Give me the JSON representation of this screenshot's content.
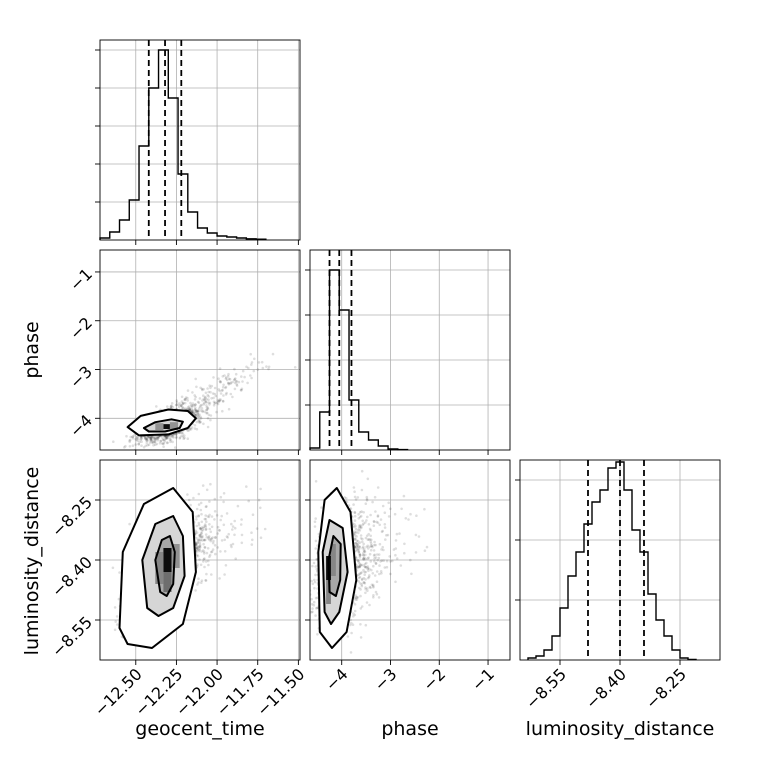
{
  "chart_data": {
    "type": "corner",
    "parameters": [
      {
        "label": "geocent_time",
        "range": [
          -12.72,
          -11.49
        ],
        "ticks": [
          -12.5,
          -12.25,
          -12.0,
          -11.75,
          -11.5
        ],
        "tick_labels": [
          "−12.50",
          "−12.25",
          "−12.00",
          "−11.75",
          "−11.50"
        ]
      },
      {
        "label": "phase",
        "range": [
          -4.65,
          -0.55
        ],
        "ticks": [
          -4,
          -3,
          -2,
          -1
        ],
        "tick_labels": [
          "−4",
          "−3",
          "−2",
          "−1"
        ]
      },
      {
        "label": "luminosity_distance",
        "range": [
          -8.65,
          -8.15
        ],
        "ticks": [
          -8.55,
          -8.4,
          -8.25
        ],
        "tick_labels": [
          "−8.55",
          "−8.40",
          "−8.25"
        ]
      }
    ],
    "histograms": [
      {
        "parameter": "geocent_time",
        "quantiles": [
          -12.42,
          -12.32,
          -12.22
        ],
        "bins": [
          {
            "x0": -12.72,
            "x1": -12.66,
            "v": 0.01
          },
          {
            "x0": -12.66,
            "x1": -12.6,
            "v": 0.04
          },
          {
            "x0": -12.6,
            "x1": -12.54,
            "v": 0.1
          },
          {
            "x0": -12.54,
            "x1": -12.48,
            "v": 0.2
          },
          {
            "x0": -12.48,
            "x1": -12.42,
            "v": 0.47
          },
          {
            "x0": -12.42,
            "x1": -12.36,
            "v": 0.76
          },
          {
            "x0": -12.36,
            "x1": -12.3,
            "v": 0.95
          },
          {
            "x0": -12.3,
            "x1": -12.24,
            "v": 0.71
          },
          {
            "x0": -12.24,
            "x1": -12.18,
            "v": 0.33
          },
          {
            "x0": -12.18,
            "x1": -12.12,
            "v": 0.14
          },
          {
            "x0": -12.12,
            "x1": -12.06,
            "v": 0.06
          },
          {
            "x0": -12.06,
            "x1": -12.0,
            "v": 0.035
          },
          {
            "x0": -12.0,
            "x1": -11.94,
            "v": 0.02
          },
          {
            "x0": -11.94,
            "x1": -11.88,
            "v": 0.015
          },
          {
            "x0": -11.88,
            "x1": -11.82,
            "v": 0.01
          },
          {
            "x0": -11.82,
            "x1": -11.76,
            "v": 0.006
          },
          {
            "x0": -11.76,
            "x1": -11.7,
            "v": 0.004
          }
        ]
      },
      {
        "parameter": "phase",
        "quantiles": [
          -4.25,
          -4.05,
          -3.8
        ],
        "bins": [
          {
            "x0": -4.65,
            "x1": -4.45,
            "v": 0.01
          },
          {
            "x0": -4.45,
            "x1": -4.25,
            "v": 0.19
          },
          {
            "x0": -4.25,
            "x1": -4.05,
            "v": 0.9
          },
          {
            "x0": -4.05,
            "x1": -3.85,
            "v": 0.7
          },
          {
            "x0": -3.85,
            "x1": -3.65,
            "v": 0.25
          },
          {
            "x0": -3.65,
            "x1": -3.45,
            "v": 0.09
          },
          {
            "x0": -3.45,
            "x1": -3.25,
            "v": 0.05
          },
          {
            "x0": -3.25,
            "x1": -3.05,
            "v": 0.02
          },
          {
            "x0": -3.05,
            "x1": -2.85,
            "v": 0.005
          },
          {
            "x0": -2.85,
            "x1": -2.65,
            "v": 0.002
          }
        ]
      },
      {
        "parameter": "luminosity_distance",
        "quantiles": [
          -8.48,
          -8.4,
          -8.34
        ],
        "bins": [
          {
            "x0": -8.63,
            "x1": -8.61,
            "v": 0.01
          },
          {
            "x0": -8.61,
            "x1": -8.59,
            "v": 0.02
          },
          {
            "x0": -8.59,
            "x1": -8.57,
            "v": 0.05
          },
          {
            "x0": -8.57,
            "x1": -8.55,
            "v": 0.12
          },
          {
            "x0": -8.55,
            "x1": -8.53,
            "v": 0.26
          },
          {
            "x0": -8.53,
            "x1": -8.51,
            "v": 0.42
          },
          {
            "x0": -8.51,
            "x1": -8.49,
            "v": 0.54
          },
          {
            "x0": -8.49,
            "x1": -8.47,
            "v": 0.68
          },
          {
            "x0": -8.47,
            "x1": -8.45,
            "v": 0.79
          },
          {
            "x0": -8.45,
            "x1": -8.43,
            "v": 0.85
          },
          {
            "x0": -8.43,
            "x1": -8.41,
            "v": 0.96
          },
          {
            "x0": -8.41,
            "x1": -8.39,
            "v": 0.99
          },
          {
            "x0": -8.39,
            "x1": -8.37,
            "v": 0.85
          },
          {
            "x0": -8.37,
            "x1": -8.35,
            "v": 0.65
          },
          {
            "x0": -8.35,
            "x1": -8.33,
            "v": 0.54
          },
          {
            "x0": -8.33,
            "x1": -8.31,
            "v": 0.33
          },
          {
            "x0": -8.31,
            "x1": -8.29,
            "v": 0.2
          },
          {
            "x0": -8.29,
            "x1": -8.27,
            "v": 0.12
          },
          {
            "x0": -8.27,
            "x1": -8.25,
            "v": 0.05
          },
          {
            "x0": -8.25,
            "x1": -8.23,
            "v": 0.01
          },
          {
            "x0": -8.23,
            "x1": -8.21,
            "v": 0.003
          }
        ]
      }
    ],
    "joint": [
      {
        "x_parameter": "geocent_time",
        "y_parameter": "phase",
        "center": [
          -12.3,
          -4.15
        ],
        "spread": [
          0.09,
          0.17
        ],
        "correlation": 0.55,
        "tail": [
          0.12,
          0.28
        ],
        "contours": [
          [
            [
              -12.45,
              -4.2
            ],
            [
              -12.38,
              -4.08
            ],
            [
              -12.28,
              -4.02
            ],
            [
              -12.21,
              -4.07
            ],
            [
              -12.23,
              -4.2
            ],
            [
              -12.32,
              -4.27
            ],
            [
              -12.42,
              -4.27
            ]
          ],
          [
            [
              -12.55,
              -4.18
            ],
            [
              -12.47,
              -3.95
            ],
            [
              -12.3,
              -3.82
            ],
            [
              -12.18,
              -3.85
            ],
            [
              -12.13,
              -4.0
            ],
            [
              -12.18,
              -4.2
            ],
            [
              -12.3,
              -4.33
            ],
            [
              -12.48,
              -4.35
            ]
          ]
        ],
        "peak_cells": [
          [
            -12.33,
            -4.22,
            -12.29,
            -4.12,
            1.0
          ],
          [
            -12.38,
            -4.24,
            -12.33,
            -4.1,
            0.45
          ],
          [
            -12.29,
            -4.24,
            -12.24,
            -4.08,
            0.45
          ]
        ]
      },
      {
        "x_parameter": "geocent_time",
        "y_parameter": "luminosity_distance",
        "center": [
          -12.32,
          -8.41
        ],
        "spread": [
          0.11,
          0.06
        ],
        "correlation": 0.6,
        "tail": [
          0.1,
          0.02
        ],
        "contours": [
          [
            [
              -12.35,
              -8.48
            ],
            [
              -12.38,
              -8.4
            ],
            [
              -12.34,
              -8.35
            ],
            [
              -12.29,
              -8.34
            ],
            [
              -12.26,
              -8.38
            ],
            [
              -12.27,
              -8.46
            ],
            [
              -12.31,
              -8.49
            ]
          ],
          [
            [
              -12.43,
              -8.52
            ],
            [
              -12.46,
              -8.4
            ],
            [
              -12.38,
              -8.31
            ],
            [
              -12.27,
              -8.29
            ],
            [
              -12.21,
              -8.34
            ],
            [
              -12.2,
              -8.44
            ],
            [
              -12.27,
              -8.52
            ],
            [
              -12.36,
              -8.54
            ]
          ],
          [
            [
              -12.6,
              -8.57
            ],
            [
              -12.58,
              -8.38
            ],
            [
              -12.45,
              -8.26
            ],
            [
              -12.27,
              -8.22
            ],
            [
              -12.15,
              -8.28
            ],
            [
              -12.13,
              -8.43
            ],
            [
              -12.21,
              -8.56
            ],
            [
              -12.4,
              -8.62
            ],
            [
              -12.55,
              -8.61
            ]
          ]
        ],
        "peak_cells": [
          [
            -12.33,
            -8.43,
            -12.28,
            -8.37,
            1.0
          ],
          [
            -12.33,
            -8.48,
            -12.28,
            -8.43,
            0.6
          ],
          [
            -12.38,
            -8.46,
            -12.33,
            -8.38,
            0.5
          ],
          [
            -12.28,
            -8.42,
            -12.23,
            -8.36,
            0.45
          ]
        ]
      },
      {
        "x_parameter": "phase",
        "y_parameter": "luminosity_distance",
        "center": [
          -4.05,
          -8.42
        ],
        "spread": [
          0.24,
          0.07
        ],
        "correlation": 0.2,
        "tail": [
          0.3,
          0.02
        ],
        "contours": [
          [
            [
              -4.25,
              -8.48
            ],
            [
              -4.27,
              -8.4
            ],
            [
              -4.17,
              -8.34
            ],
            [
              -4.02,
              -8.36
            ],
            [
              -4.03,
              -8.45
            ],
            [
              -4.12,
              -8.49
            ]
          ],
          [
            [
              -4.35,
              -8.53
            ],
            [
              -4.39,
              -8.38
            ],
            [
              -4.25,
              -8.3
            ],
            [
              -3.98,
              -8.32
            ],
            [
              -3.88,
              -8.43
            ],
            [
              -4.05,
              -8.53
            ],
            [
              -4.22,
              -8.56
            ]
          ],
          [
            [
              -4.45,
              -8.58
            ],
            [
              -4.48,
              -8.38
            ],
            [
              -4.35,
              -8.25
            ],
            [
              -4.1,
              -8.22
            ],
            [
              -3.82,
              -8.28
            ],
            [
              -3.7,
              -8.45
            ],
            [
              -3.9,
              -8.58
            ],
            [
              -4.2,
              -8.62
            ]
          ]
        ],
        "peak_cells": [
          [
            -4.32,
            -8.45,
            -4.22,
            -8.39,
            1.0
          ],
          [
            -4.32,
            -8.51,
            -4.22,
            -8.45,
            0.5
          ],
          [
            -4.22,
            -8.44,
            -4.12,
            -8.36,
            0.5
          ]
        ]
      }
    ]
  }
}
